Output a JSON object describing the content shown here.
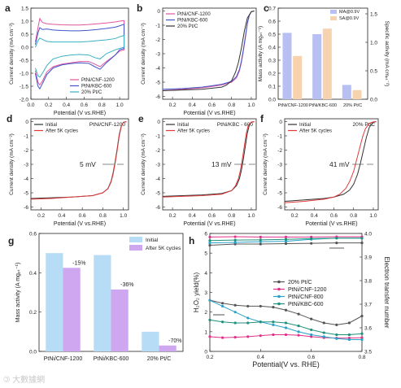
{
  "watermark": "🄯 大數據網",
  "chart_data": [
    {
      "id": "a",
      "label": "a",
      "type": "line",
      "xlabel": "Potential (V vs.RHE)",
      "ylabel": "Current density (mA cm⁻²)",
      "xlim": [
        0,
        1.1
      ],
      "ylim": [
        -2.0,
        1.5
      ],
      "xticks": [
        "0.0",
        "0.2",
        "0.4",
        "0.6",
        "0.8",
        "1.0"
      ],
      "yticks": [
        "-2.0",
        "-1.5",
        "-1.0",
        "-0.5",
        "0.0",
        "0.5",
        "1.0",
        "1.5"
      ],
      "legend_position": "bottom-right",
      "series": [
        {
          "name": "PtNi/CNF-1200",
          "color": "#e0559e",
          "x": [
            0.05,
            0.08,
            0.1,
            0.13,
            0.18,
            0.25,
            0.35,
            0.45,
            0.55,
            0.65,
            0.75,
            0.85,
            0.95,
            1.0,
            1.05,
            1.05,
            1.0,
            0.95,
            0.85,
            0.78,
            0.72,
            0.65,
            0.55,
            0.45,
            0.35,
            0.25,
            0.18,
            0.13,
            0.1,
            0.08,
            0.05
          ],
          "y": [
            0.2,
            0.75,
            1.1,
            0.95,
            0.9,
            0.88,
            0.86,
            0.85,
            0.85,
            0.87,
            0.9,
            0.93,
            0.97,
            1.0,
            1.02,
            -0.1,
            -0.15,
            -0.3,
            -0.55,
            -0.75,
            -0.65,
            -0.55,
            -0.55,
            -0.6,
            -0.65,
            -0.75,
            -0.95,
            -1.3,
            -1.45,
            -1.35,
            -0.9
          ]
        },
        {
          "name": "PtNi/KBC-600",
          "color": "#3f55c8",
          "x": [
            0.05,
            0.08,
            0.1,
            0.13,
            0.18,
            0.25,
            0.35,
            0.45,
            0.55,
            0.65,
            0.75,
            0.85,
            0.95,
            1.0,
            1.05,
            1.05,
            1.0,
            0.95,
            0.85,
            0.78,
            0.72,
            0.65,
            0.55,
            0.45,
            0.35,
            0.25,
            0.18,
            0.13,
            0.1,
            0.08,
            0.05
          ],
          "y": [
            0.1,
            0.55,
            0.75,
            0.68,
            0.7,
            0.66,
            0.64,
            0.63,
            0.63,
            0.65,
            0.68,
            0.72,
            0.77,
            0.82,
            0.88,
            -0.05,
            -0.1,
            -0.3,
            -0.6,
            -0.85,
            -0.75,
            -0.62,
            -0.6,
            -0.63,
            -0.68,
            -0.8,
            -1.05,
            -1.4,
            -1.6,
            -1.5,
            -1.0
          ]
        },
        {
          "name": "20% Pt/C",
          "color": "#3bb0c0",
          "x": [
            0.05,
            0.08,
            0.1,
            0.13,
            0.18,
            0.25,
            0.35,
            0.45,
            0.55,
            0.65,
            0.75,
            0.85,
            0.95,
            1.0,
            1.05,
            1.05,
            1.0,
            0.95,
            0.85,
            0.78,
            0.72,
            0.65,
            0.55,
            0.45,
            0.35,
            0.25,
            0.18,
            0.13,
            0.1,
            0.08,
            0.05
          ],
          "y": [
            0.0,
            0.25,
            0.35,
            0.3,
            0.22,
            0.2,
            0.2,
            0.2,
            0.2,
            0.22,
            0.25,
            0.28,
            0.33,
            0.4,
            0.45,
            0.0,
            -0.05,
            -0.1,
            -0.25,
            -0.45,
            -0.4,
            -0.3,
            -0.28,
            -0.3,
            -0.35,
            -0.45,
            -0.7,
            -1.0,
            -1.15,
            -1.1,
            -0.8
          ]
        }
      ]
    },
    {
      "id": "b",
      "label": "b",
      "type": "line",
      "xlabel": "Potential (V vs.RHE)",
      "ylabel": "Current density (mA cm⁻²)",
      "xlim": [
        0.1,
        1.05
      ],
      "ylim": [
        -6.2,
        0.2
      ],
      "xticks": [
        "0.2",
        "0.4",
        "0.6",
        "0.8",
        "1.0"
      ],
      "yticks": [
        "-6",
        "-5",
        "-4",
        "-3",
        "-2",
        "-1",
        "0"
      ],
      "legend_position": "top-left",
      "series": [
        {
          "name": "PtNi/CNF-1200",
          "color": "#e0559e",
          "x": [
            0.1,
            0.3,
            0.5,
            0.7,
            0.8,
            0.85,
            0.88,
            0.9,
            0.92,
            0.94,
            0.96,
            0.98,
            1.0,
            1.03
          ],
          "y": [
            -5.6,
            -5.5,
            -5.4,
            -5.2,
            -5.0,
            -4.7,
            -4.2,
            -3.6,
            -2.8,
            -1.9,
            -0.9,
            -0.3,
            -0.05,
            0.0
          ]
        },
        {
          "name": "PtNi/KBC-600",
          "color": "#3f55c8",
          "x": [
            0.1,
            0.3,
            0.5,
            0.7,
            0.8,
            0.85,
            0.88,
            0.9,
            0.92,
            0.94,
            0.96,
            0.98,
            1.0,
            1.03
          ],
          "y": [
            -5.5,
            -5.45,
            -5.35,
            -5.15,
            -4.95,
            -4.6,
            -4.1,
            -3.5,
            -2.7,
            -1.8,
            -0.85,
            -0.3,
            -0.05,
            0.0
          ]
        },
        {
          "name": "20% Pt/C",
          "color": "#333333",
          "x": [
            0.1,
            0.3,
            0.5,
            0.7,
            0.75,
            0.8,
            0.84,
            0.87,
            0.9,
            0.93,
            0.96,
            1.0,
            1.03
          ],
          "y": [
            -5.6,
            -5.55,
            -5.5,
            -5.35,
            -5.2,
            -4.9,
            -4.3,
            -3.6,
            -2.6,
            -1.4,
            -0.5,
            -0.05,
            0.0
          ]
        }
      ]
    },
    {
      "id": "c",
      "label": "c",
      "type": "bar",
      "categories": [
        "PtNi/CNF-1200",
        "PtNi/KBC-600",
        "20% Pt/C"
      ],
      "ylabel": "Mass activity (A mgₚₜ⁻¹)",
      "ylabel_right": "Specific activity (mA cmₚₜ⁻²)",
      "ylim": [
        0,
        0.7
      ],
      "ylim_right": [
        0,
        1.6
      ],
      "yticks": [
        "0.0",
        "0.1",
        "0.2",
        "0.3",
        "0.4",
        "0.5",
        "0.6",
        "0.7"
      ],
      "yticks_right": [
        "0.0",
        "0.5",
        "1.0",
        "1.5"
      ],
      "legend_position": "top-right",
      "series": [
        {
          "name": "MA@0.9V",
          "color": "#b8bff2",
          "axis": "left",
          "values": [
            0.51,
            0.5,
            0.11
          ]
        },
        {
          "name": "SA@0.9V",
          "color": "#f7d2ae",
          "axis": "right",
          "values": [
            0.76,
            1.24,
            0.16
          ]
        }
      ]
    },
    {
      "id": "d",
      "label": "d",
      "type": "line",
      "title": "PtNi/CNF-1200",
      "xlabel": "Potential (V vs.RHE)",
      "ylabel": "Current density (mA cm⁻²)",
      "xlim": [
        0.1,
        1.05
      ],
      "ylim": [
        -6.2,
        0.2
      ],
      "xticks": [
        "0.2",
        "0.4",
        "0.6",
        "0.8",
        "1.0"
      ],
      "yticks": [
        "-6",
        "-5",
        "-4",
        "-3",
        "-2",
        "-1",
        "0"
      ],
      "legend_position": "top-left",
      "annotation": "5 mV",
      "series": [
        {
          "name": "Initial",
          "color": "#333333",
          "x": [
            0.1,
            0.3,
            0.5,
            0.7,
            0.8,
            0.85,
            0.88,
            0.9,
            0.92,
            0.94,
            0.96,
            0.98,
            1.0,
            1.03
          ],
          "y": [
            -5.4,
            -5.35,
            -5.3,
            -5.2,
            -5.0,
            -4.7,
            -4.2,
            -3.6,
            -2.8,
            -1.9,
            -0.9,
            -0.3,
            -0.05,
            0.0
          ]
        },
        {
          "name": "After 5K cycles",
          "color": "#e03a3a",
          "x": [
            0.1,
            0.3,
            0.5,
            0.7,
            0.8,
            0.85,
            0.88,
            0.9,
            0.92,
            0.94,
            0.96,
            0.98,
            1.0,
            1.03
          ],
          "y": [
            -5.45,
            -5.4,
            -5.3,
            -5.2,
            -5.0,
            -4.72,
            -4.25,
            -3.7,
            -2.9,
            -2.0,
            -1.0,
            -0.35,
            -0.06,
            0.0
          ]
        }
      ]
    },
    {
      "id": "e",
      "label": "e",
      "type": "line",
      "title": "PtNi/KBC - 600",
      "xlabel": "Potential (V vs.RHE)",
      "ylabel": "Current density (mA cm⁻²)",
      "xlim": [
        0.1,
        1.05
      ],
      "ylim": [
        -6.2,
        0.2
      ],
      "xticks": [
        "0.2",
        "0.4",
        "0.6",
        "0.8",
        "1.0"
      ],
      "yticks": [
        "-6",
        "-5",
        "-4",
        "-3",
        "-2",
        "-1",
        "0"
      ],
      "legend_position": "top-left",
      "annotation": "13 mV",
      "series": [
        {
          "name": "Initial",
          "color": "#333333",
          "x": [
            0.1,
            0.3,
            0.5,
            0.7,
            0.8,
            0.85,
            0.88,
            0.9,
            0.92,
            0.94,
            0.96,
            0.98,
            1.0,
            1.03
          ],
          "y": [
            -5.25,
            -5.2,
            -5.15,
            -5.05,
            -4.85,
            -4.5,
            -4.0,
            -3.4,
            -2.6,
            -1.7,
            -0.8,
            -0.25,
            -0.04,
            0.0
          ]
        },
        {
          "name": "After 5K cycles",
          "color": "#e03a3a",
          "x": [
            0.1,
            0.3,
            0.5,
            0.7,
            0.8,
            0.84,
            0.87,
            0.89,
            0.91,
            0.93,
            0.95,
            0.97,
            1.0,
            1.03
          ],
          "y": [
            -5.3,
            -5.25,
            -5.2,
            -5.1,
            -4.85,
            -4.5,
            -4.0,
            -3.4,
            -2.6,
            -1.7,
            -0.8,
            -0.25,
            -0.03,
            0.0
          ]
        }
      ]
    },
    {
      "id": "f",
      "label": "f",
      "type": "line",
      "title": "20% Pt/C",
      "xlabel": "Potential (V vs.RHE)",
      "ylabel": "Current density (mA cm⁻²)",
      "xlim": [
        0.1,
        1.05
      ],
      "ylim": [
        -6.2,
        0.2
      ],
      "xticks": [
        "0.2",
        "0.4",
        "0.6",
        "0.8",
        "1.0"
      ],
      "yticks": [
        "-6",
        "-5",
        "-4",
        "-3",
        "-2",
        "-1",
        "0"
      ],
      "legend_position": "top-left",
      "annotation": "41 mV",
      "series": [
        {
          "name": "Initial",
          "color": "#333333",
          "x": [
            0.1,
            0.3,
            0.5,
            0.6,
            0.7,
            0.76,
            0.8,
            0.84,
            0.87,
            0.9,
            0.93,
            0.96,
            1.0,
            1.03
          ],
          "y": [
            -5.6,
            -5.5,
            -5.4,
            -5.3,
            -5.1,
            -4.8,
            -4.4,
            -3.7,
            -2.9,
            -2.0,
            -1.1,
            -0.4,
            -0.05,
            0.0
          ]
        },
        {
          "name": "After 5K cycles",
          "color": "#e03a3a",
          "x": [
            0.1,
            0.3,
            0.5,
            0.6,
            0.66,
            0.72,
            0.76,
            0.8,
            0.83,
            0.86,
            0.89,
            0.92,
            0.96,
            1.0,
            1.03
          ],
          "y": [
            -5.7,
            -5.6,
            -5.45,
            -5.3,
            -5.1,
            -4.7,
            -4.2,
            -3.5,
            -2.7,
            -1.9,
            -1.1,
            -0.5,
            -0.12,
            -0.02,
            0.0
          ]
        }
      ]
    },
    {
      "id": "g",
      "label": "g",
      "type": "bar",
      "categories": [
        "PtNi/CNF-1200",
        "PtNi/KBC-600",
        "20% Pt/C"
      ],
      "ylabel": "Mass activity (A mgₚₜ⁻¹)",
      "ylim": [
        0,
        0.6
      ],
      "yticks": [
        "0.0",
        "0.2",
        "0.4",
        "0.6"
      ],
      "legend_position": "top-right",
      "annotations": [
        "-15%",
        "-36%",
        "-70%"
      ],
      "series": [
        {
          "name": "Initial",
          "color": "#b7dcf5",
          "values": [
            0.5,
            0.49,
            0.1
          ]
        },
        {
          "name": "After 5K cycles",
          "color": "#cfa6f0",
          "values": [
            0.425,
            0.315,
            0.03
          ]
        }
      ]
    },
    {
      "id": "h",
      "label": "h",
      "type": "line",
      "xlabel": "Potential(V vs. RHE)",
      "ylabel": "H₂O₂ yield(%)",
      "ylabel_right": "Electron transfer number",
      "xlim": [
        0.2,
        0.8
      ],
      "ylim": [
        0,
        6
      ],
      "ylim_right": [
        3.5,
        4.0
      ],
      "xticks": [
        "0.2",
        "0.4",
        "0.6",
        "0.8"
      ],
      "yticks": [
        "0",
        "1",
        "2",
        "3",
        "4",
        "5",
        "6"
      ],
      "yticks_right": [
        "3.5",
        "3.6",
        "3.7",
        "3.8",
        "3.9",
        "4.0"
      ],
      "legend_position": "center-right",
      "series": [
        {
          "name": "20% Pt/C",
          "color": "#555555",
          "axis": "left",
          "x": [
            0.2,
            0.25,
            0.3,
            0.35,
            0.4,
            0.45,
            0.5,
            0.55,
            0.6,
            0.65,
            0.7,
            0.75,
            0.8
          ],
          "y": [
            2.6,
            2.45,
            2.35,
            2.3,
            2.3,
            2.25,
            2.1,
            1.9,
            1.65,
            1.45,
            1.35,
            1.45,
            1.8
          ]
        },
        {
          "name": "PtNi/CNF-1200",
          "color": "#e0308a",
          "axis": "left",
          "x": [
            0.2,
            0.25,
            0.3,
            0.35,
            0.4,
            0.45,
            0.5,
            0.55,
            0.6,
            0.65,
            0.7,
            0.75,
            0.8
          ],
          "y": [
            0.75,
            0.7,
            0.72,
            0.75,
            0.8,
            0.85,
            0.85,
            0.82,
            0.75,
            0.7,
            0.68,
            0.68,
            0.7
          ]
        },
        {
          "name": "PtNi/CNF-800",
          "color": "#2aa2c8",
          "axis": "left",
          "x": [
            0.2,
            0.25,
            0.3,
            0.35,
            0.4,
            0.45,
            0.5,
            0.55,
            0.6,
            0.65,
            0.7,
            0.75,
            0.8
          ],
          "y": [
            2.6,
            2.3,
            2.0,
            1.7,
            1.5,
            1.35,
            1.2,
            1.0,
            0.85,
            0.75,
            0.65,
            0.6,
            0.6
          ]
        },
        {
          "name": "PtNi/KBC-600",
          "color": "#1f8f7a",
          "axis": "left",
          "x": [
            0.2,
            0.25,
            0.3,
            0.35,
            0.4,
            0.45,
            0.5,
            0.55,
            0.6,
            0.65,
            0.7,
            0.75,
            0.8
          ],
          "y": [
            1.6,
            1.5,
            1.45,
            1.45,
            1.5,
            1.5,
            1.45,
            1.3,
            1.1,
            0.95,
            0.85,
            0.85,
            0.9
          ]
        },
        {
          "name": "20% Pt/C",
          "color": "#555555",
          "axis": "right",
          "x": [
            0.2,
            0.3,
            0.4,
            0.5,
            0.6,
            0.7,
            0.8
          ],
          "y": [
            3.95,
            3.955,
            3.955,
            3.957,
            3.958,
            3.96,
            3.96
          ]
        },
        {
          "name": "PtNi/CNF-1200",
          "color": "#e0308a",
          "axis": "right",
          "x": [
            0.2,
            0.3,
            0.4,
            0.5,
            0.6,
            0.7,
            0.8
          ],
          "y": [
            3.985,
            3.986,
            3.985,
            3.985,
            3.985,
            3.986,
            3.986
          ]
        },
        {
          "name": "PtNi/CNF-800",
          "color": "#2aa2c8",
          "axis": "right",
          "x": [
            0.2,
            0.3,
            0.4,
            0.5,
            0.6,
            0.7,
            0.8
          ],
          "y": [
            3.96,
            3.962,
            3.965,
            3.967,
            3.975,
            3.98,
            3.98
          ]
        },
        {
          "name": "PtNi/KBC-600",
          "color": "#1f8f7a",
          "axis": "right",
          "x": [
            0.2,
            0.3,
            0.4,
            0.5,
            0.6,
            0.7,
            0.8
          ],
          "y": [
            3.97,
            3.972,
            3.973,
            3.975,
            3.978,
            3.98,
            3.98
          ]
        }
      ]
    }
  ]
}
